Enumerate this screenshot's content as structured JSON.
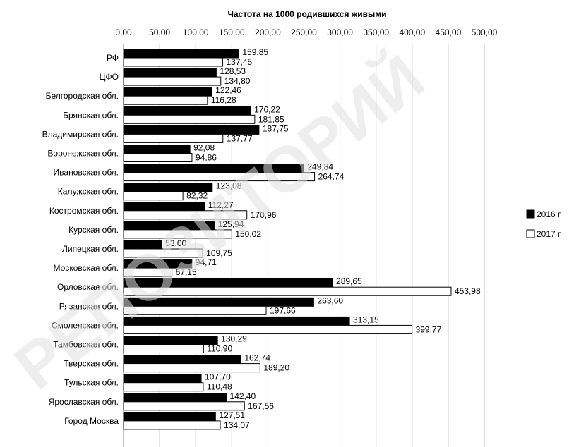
{
  "chart_data": {
    "type": "bar",
    "title": "Частота на 1000 родившихся живыми",
    "orientation": "horizontal",
    "xlim": [
      0,
      500
    ],
    "ticks": [
      "0,00",
      "50,00",
      "100,00",
      "150,00",
      "200,00",
      "250,00",
      "300,00",
      "350,00",
      "400,00",
      "450,00",
      "500,00"
    ],
    "tick_values": [
      0,
      50,
      100,
      150,
      200,
      250,
      300,
      350,
      400,
      450,
      500
    ],
    "grid": true,
    "legend_position": "right",
    "categories": [
      "РФ",
      "ЦФО",
      "Белгородская обл.",
      "Брянская обл.",
      "Владимирская обл.",
      "Воронежская обл.",
      "Ивановская обл.",
      "Калужская обл.",
      "Костромская обл.",
      "Курская обл.",
      "Липецкая обл.",
      "Московская обл.",
      "Орловская обл.",
      "Рязанская обл.",
      "Смоленская обл.",
      "Тамбовская обл.",
      "Тверская обл.",
      "Тульская обл.",
      "Ярославская обл.",
      "Город Москва"
    ],
    "series": [
      {
        "name": "2016 г",
        "color": "#000000",
        "values": [
          159.85,
          128.53,
          122.46,
          176.22,
          187.75,
          92.08,
          249.84,
          123.08,
          112.27,
          125.94,
          53.0,
          94.71,
          289.65,
          263.6,
          313.15,
          130.29,
          162.74,
          107.7,
          142.4,
          127.51
        ],
        "labels": [
          "159,85",
          "128,53",
          "122,46",
          "176,22",
          "187,75",
          "92,08",
          "249,84",
          "123,08",
          "112,27",
          "125,94",
          "53,00",
          "94,71",
          "289,65",
          "263,60",
          "313,15",
          "130,29",
          "162,74",
          "107,70",
          "142,40",
          "127,51"
        ]
      },
      {
        "name": "2017 г",
        "color": "#ffffff",
        "values": [
          137.45,
          134.8,
          116.28,
          181.85,
          137.77,
          94.86,
          264.74,
          82.32,
          170.96,
          150.02,
          109.75,
          67.15,
          453.98,
          197.66,
          399.77,
          110.9,
          189.2,
          110.48,
          167.56,
          134.07
        ],
        "labels": [
          "137,45",
          "134,80",
          "116,28",
          "181,85",
          "137,77",
          "94,86",
          "264,74",
          "82,32",
          "170,96",
          "150,02",
          "109,75",
          "67,15",
          "453,98",
          "197,66",
          "399,77",
          "110,90",
          "189,20",
          "110,48",
          "167,56",
          "134,07"
        ]
      }
    ]
  },
  "watermark": {
    "text": "РЕПОЗИТОРИЙ",
    "color": "#e0e0e0"
  }
}
